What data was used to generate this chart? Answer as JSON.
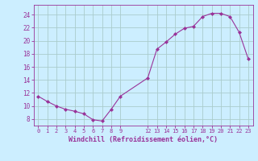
{
  "x": [
    0,
    1,
    2,
    3,
    4,
    5,
    6,
    7,
    8,
    9,
    12,
    13,
    14,
    15,
    16,
    17,
    18,
    19,
    20,
    21,
    22,
    23
  ],
  "y": [
    11.5,
    10.7,
    10.0,
    9.5,
    9.2,
    8.8,
    7.9,
    7.7,
    9.5,
    11.5,
    14.3,
    18.7,
    19.8,
    21.0,
    21.9,
    22.2,
    23.7,
    24.2,
    24.2,
    23.7,
    21.3,
    17.2
  ],
  "xlim": [
    -0.5,
    23.5
  ],
  "ylim": [
    7.0,
    25.5
  ],
  "y_ticks": [
    8,
    10,
    12,
    14,
    16,
    18,
    20,
    22,
    24
  ],
  "x_tick_positions": [
    0,
    1,
    2,
    3,
    4,
    5,
    6,
    7,
    8,
    9,
    12,
    13,
    14,
    15,
    16,
    17,
    18,
    19,
    20,
    21,
    22,
    23
  ],
  "x_tick_labels": [
    "0",
    "1",
    "2",
    "3",
    "4",
    "5",
    "6",
    "7",
    "8",
    "9",
    "12",
    "13",
    "14",
    "15",
    "16",
    "17",
    "18",
    "19",
    "20",
    "21",
    "22",
    "23"
  ],
  "xlabel": "Windchill (Refroidissement éolien,°C)",
  "line_color": "#993399",
  "marker": "D",
  "marker_size": 2.0,
  "bg_color": "#cceeff",
  "grid_color": "#aacccc",
  "spine_color": "#993399",
  "tick_color": "#993399",
  "label_color": "#993399",
  "tick_fontsize": 5.0,
  "xlabel_fontsize": 6.0,
  "ytick_fontsize": 5.5
}
